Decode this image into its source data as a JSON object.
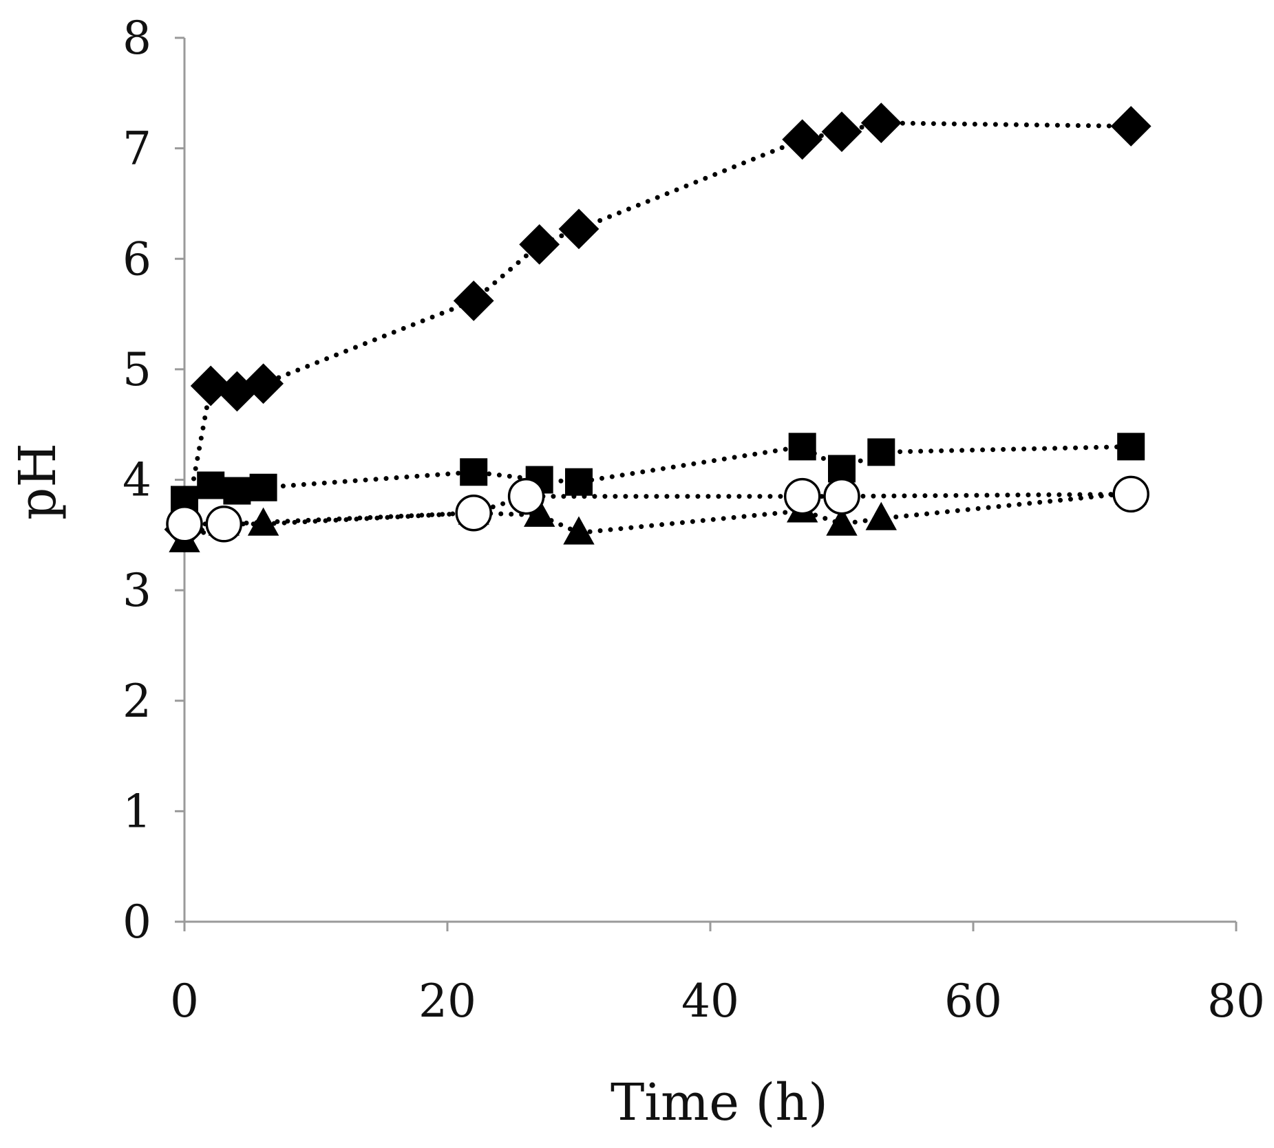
{
  "chart_data": {
    "type": "scatter",
    "title": "",
    "xlabel": "Time (h)",
    "ylabel": "pH",
    "xlim": [
      0,
      80
    ],
    "ylim": [
      0,
      8
    ],
    "xticks": [
      0,
      20,
      40,
      60,
      80
    ],
    "yticks": [
      0,
      1,
      2,
      3,
      4,
      5,
      6,
      7,
      8
    ],
    "grid": false,
    "legend": "none",
    "series": [
      {
        "name": "filled-diamond",
        "marker": "diamond",
        "fill": "#000000",
        "line": "dotted",
        "x": [
          0,
          2,
          4,
          6,
          22,
          27,
          30,
          47,
          50,
          53,
          72
        ],
        "y": [
          3.55,
          4.85,
          4.8,
          4.87,
          5.62,
          6.13,
          6.27,
          7.08,
          7.15,
          7.23,
          7.2
        ]
      },
      {
        "name": "filled-square",
        "marker": "square",
        "fill": "#000000",
        "line": "dotted",
        "x": [
          0,
          2,
          4,
          6,
          22,
          27,
          30,
          47,
          50,
          53,
          72
        ],
        "y": [
          3.82,
          3.95,
          3.9,
          3.93,
          4.07,
          4.0,
          3.98,
          4.3,
          4.1,
          4.25,
          4.3
        ]
      },
      {
        "name": "filled-triangle",
        "marker": "triangle",
        "fill": "#000000",
        "line": "dotted",
        "x": [
          0,
          3,
          6,
          22,
          27,
          30,
          47,
          50,
          53,
          72
        ],
        "y": [
          3.45,
          3.6,
          3.6,
          3.7,
          3.68,
          3.52,
          3.72,
          3.6,
          3.65,
          3.88
        ]
      },
      {
        "name": "open-circle",
        "marker": "circle",
        "fill": "#ffffff",
        "line": "dotted",
        "x": [
          0,
          3,
          22,
          26,
          47,
          50,
          72
        ],
        "y": [
          3.6,
          3.6,
          3.7,
          3.85,
          3.85,
          3.85,
          3.87
        ]
      }
    ]
  }
}
